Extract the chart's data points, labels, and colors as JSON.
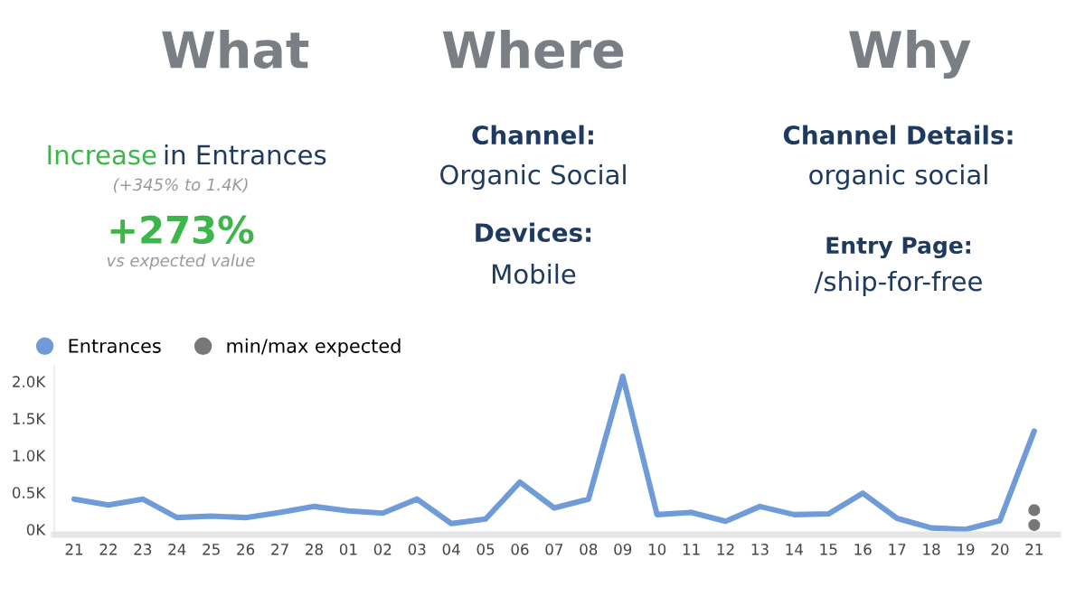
{
  "chart_data": {
    "type": "line",
    "categories": [
      "21",
      "22",
      "23",
      "24",
      "25",
      "26",
      "27",
      "28",
      "01",
      "02",
      "03",
      "04",
      "05",
      "06",
      "07",
      "08",
      "09",
      "10",
      "11",
      "12",
      "13",
      "14",
      "15",
      "16",
      "17",
      "18",
      "19",
      "20",
      "21"
    ],
    "series": [
      {
        "name": "Entrances",
        "color": "#6f9bd9",
        "marker": "none",
        "values": [
          0.41,
          0.33,
          0.41,
          0.16,
          0.18,
          0.16,
          0.23,
          0.31,
          0.25,
          0.22,
          0.41,
          0.08,
          0.14,
          0.64,
          0.29,
          0.41,
          2.07,
          0.2,
          0.23,
          0.11,
          0.31,
          0.2,
          0.21,
          0.49,
          0.15,
          0.02,
          0,
          0.12,
          1.33
        ]
      },
      {
        "name": "min/max expected",
        "type": "scatter",
        "marker": "circle",
        "color": "#777777",
        "values": [
          null,
          null,
          null,
          null,
          null,
          null,
          null,
          null,
          null,
          null,
          null,
          null,
          null,
          null,
          null,
          null,
          null,
          null,
          null,
          null,
          null,
          null,
          null,
          null,
          null,
          null,
          null,
          null,
          0.26
        ]
      },
      {
        "type": "scatter",
        "marker": "circle",
        "color": "#777777",
        "values": [
          null,
          null,
          null,
          null,
          null,
          null,
          null,
          null,
          null,
          null,
          null,
          null,
          null,
          null,
          null,
          null,
          null,
          null,
          null,
          null,
          null,
          null,
          null,
          null,
          null,
          null,
          null,
          null,
          0.06
        ]
      }
    ],
    "ylim": [
      -0.07,
      2.2
    ],
    "yticks": [
      {
        "value": 0,
        "label": "0K"
      },
      {
        "value": 0.5,
        "label": "0.5K"
      },
      {
        "value": 1.0,
        "label": "1.0K"
      },
      {
        "value": 1.5,
        "label": "1.5K"
      },
      {
        "value": 2.0,
        "label": "2.0K"
      }
    ],
    "grid": false,
    "legend": "top left",
    "line_style": "solid",
    "annotations": [
      "What",
      "Where",
      "Why",
      "Increase",
      "in Entrances",
      "(+345% to 1.4K)",
      "+273%",
      "vs expected value",
      "Channel:",
      "Organic Social",
      "Devices:",
      "Mobile",
      "Channel Details:",
      "organic social",
      "Entry Page:",
      "/ship-for-free"
    ]
  }
}
